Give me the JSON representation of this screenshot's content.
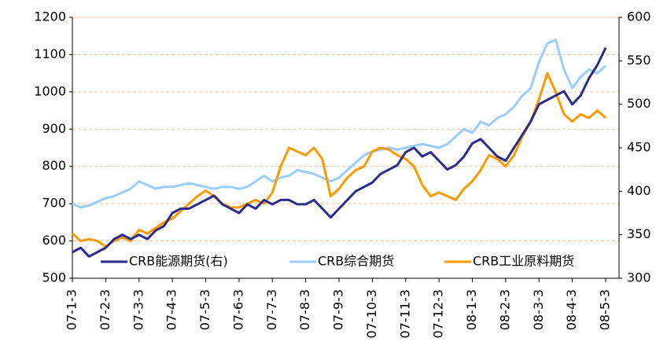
{
  "chart_data": {
    "type": "line",
    "categories": [
      "07-1-3",
      null,
      null,
      null,
      "07-2-3",
      null,
      null,
      null,
      "07-3-3",
      null,
      null,
      null,
      "07-4-3",
      null,
      null,
      null,
      "07-5-3",
      null,
      null,
      null,
      "07-6-3",
      null,
      null,
      null,
      "07-7-3",
      null,
      null,
      null,
      "07-8-3",
      null,
      null,
      null,
      "07-9-3",
      null,
      null,
      null,
      "07-10-3",
      null,
      null,
      null,
      "07-11-3",
      null,
      null,
      null,
      "07-12-3",
      null,
      null,
      null,
      "08-1-3",
      null,
      null,
      null,
      "08-2-3",
      null,
      null,
      null,
      "08-3-3",
      null,
      null,
      null,
      "08-4-3",
      null,
      null,
      null,
      "08-5-3"
    ],
    "series": [
      {
        "name": "CRB能源期货(右)",
        "color": "#2b2b8c",
        "axis": "y2",
        "values": [
          330,
          335,
          325,
          330,
          335,
          345,
          350,
          345,
          350,
          345,
          355,
          360,
          375,
          380,
          380,
          385,
          390,
          395,
          385,
          380,
          375,
          385,
          380,
          390,
          385,
          390,
          390,
          385,
          385,
          390,
          380,
          370,
          380,
          390,
          400,
          405,
          410,
          420,
          425,
          430,
          445,
          450,
          440,
          445,
          435,
          425,
          430,
          440,
          455,
          460,
          450,
          440,
          435,
          450,
          465,
          480,
          500,
          505,
          510,
          515,
          500,
          510,
          530,
          545,
          565
        ]
      },
      {
        "name": "CRB综合期货",
        "color": "#99ccff",
        "values": [
          700,
          690,
          695,
          705,
          715,
          720,
          730,
          740,
          760,
          750,
          740,
          745,
          745,
          750,
          755,
          750,
          745,
          740,
          745,
          745,
          740,
          745,
          760,
          775,
          760,
          770,
          775,
          790,
          785,
          780,
          770,
          760,
          770,
          790,
          810,
          830,
          840,
          845,
          850,
          845,
          850,
          855,
          860,
          855,
          850,
          860,
          880,
          900,
          890,
          920,
          910,
          930,
          940,
          960,
          990,
          1010,
          1080,
          1130,
          1140,
          1060,
          1010,
          1040,
          1060,
          1050,
          1070
        ]
      },
      {
        "name": "CRB工业原料期货",
        "color": "#ff9900",
        "values": [
          620,
          600,
          605,
          600,
          585,
          600,
          610,
          600,
          630,
          620,
          635,
          650,
          660,
          680,
          700,
          720,
          735,
          720,
          700,
          690,
          690,
          700,
          710,
          700,
          730,
          800,
          850,
          840,
          830,
          850,
          820,
          720,
          740,
          770,
          790,
          800,
          840,
          850,
          845,
          830,
          820,
          800,
          750,
          720,
          730,
          720,
          710,
          740,
          760,
          790,
          830,
          820,
          800,
          830,
          880,
          920,
          980,
          1050,
          1000,
          940,
          920,
          940,
          930,
          950,
          930
        ]
      }
    ],
    "ylim": [
      500,
      1200
    ],
    "yticks": [
      500,
      600,
      700,
      800,
      900,
      1000,
      1100,
      1200
    ],
    "y2lim": [
      300,
      600
    ],
    "y2ticks": [
      300,
      350,
      400,
      450,
      500,
      550,
      600
    ],
    "grid": true,
    "legend": "bottom"
  }
}
